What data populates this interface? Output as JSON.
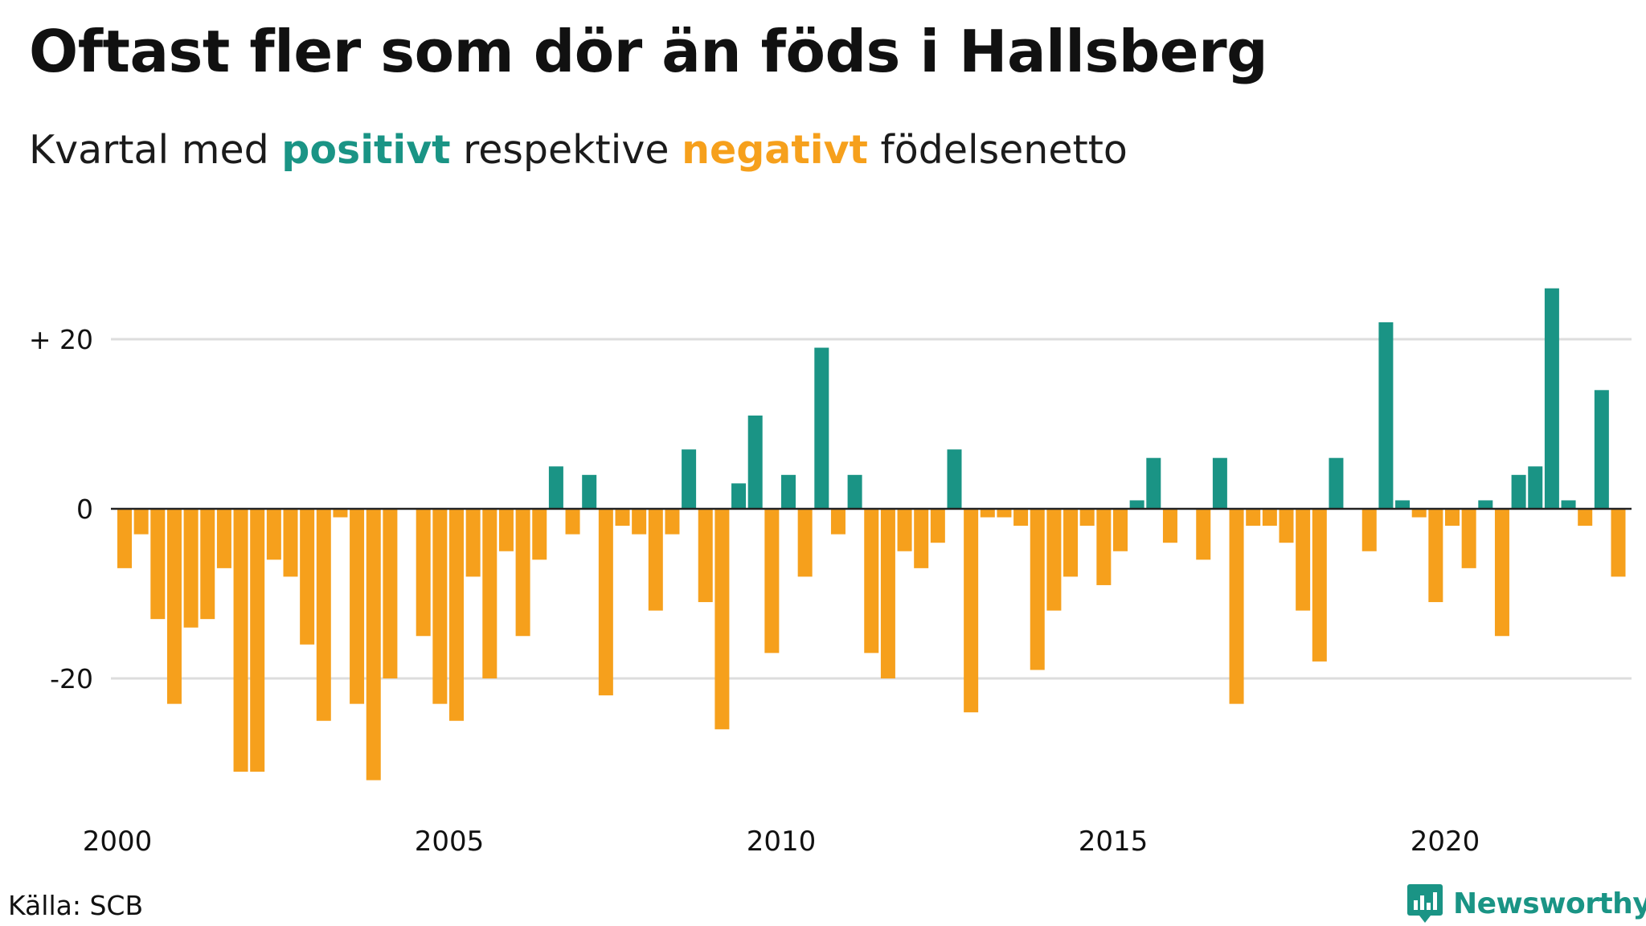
{
  "title": "Oftast fler som dör än föds i Hallsberg",
  "subtitle": {
    "prefix": "Kvartal med ",
    "positive_word": "positivt",
    "middle": " respektive ",
    "negative_word": "negativt",
    "suffix": " födelsenetto"
  },
  "source": "Källa: SCB",
  "brand": {
    "name": "Newsworthy",
    "icon": "newsworthy-logo-icon"
  },
  "colors": {
    "positive": "#1a9485",
    "negative": "#f6a01c",
    "grid": "#dddddd",
    "zero_line": "#222222"
  },
  "chart_data": {
    "type": "bar",
    "x_start_year": 2000,
    "quarters_per_year": 4,
    "values": [
      -7,
      -3,
      -13,
      -23,
      -14,
      -13,
      -7,
      -31,
      -31,
      -6,
      -8,
      -16,
      -25,
      -1,
      -23,
      -32,
      -20,
      0,
      -15,
      -23,
      -25,
      -8,
      -20,
      -5,
      -15,
      -6,
      5,
      -3,
      4,
      -22,
      -2,
      -3,
      -12,
      -3,
      7,
      -11,
      -26,
      3,
      11,
      -17,
      4,
      -8,
      19,
      -3,
      4,
      -17,
      -20,
      -5,
      -7,
      -4,
      7,
      -24,
      -1,
      -1,
      -2,
      -19,
      -12,
      -8,
      -2,
      -9,
      -5,
      1,
      6,
      -4,
      0,
      -6,
      6,
      -23,
      -2,
      -2,
      -4,
      -12,
      -18,
      6,
      0,
      -5,
      22,
      1,
      -1,
      -11,
      -2,
      -7,
      1,
      -15,
      4,
      5,
      26,
      1,
      -2,
      14,
      -8
    ],
    "y_ticks": [
      {
        "value": 20,
        "label": "+ 20"
      },
      {
        "value": 0,
        "label": "0"
      },
      {
        "value": -20,
        "label": "-20"
      }
    ],
    "x_ticks": [
      {
        "year": 2000,
        "label": "2000"
      },
      {
        "year": 2005,
        "label": "2005"
      },
      {
        "year": 2010,
        "label": "2010"
      },
      {
        "year": 2015,
        "label": "2015"
      },
      {
        "year": 2020,
        "label": "2020"
      }
    ],
    "ylim": [
      -33,
      27
    ],
    "grid": true
  }
}
